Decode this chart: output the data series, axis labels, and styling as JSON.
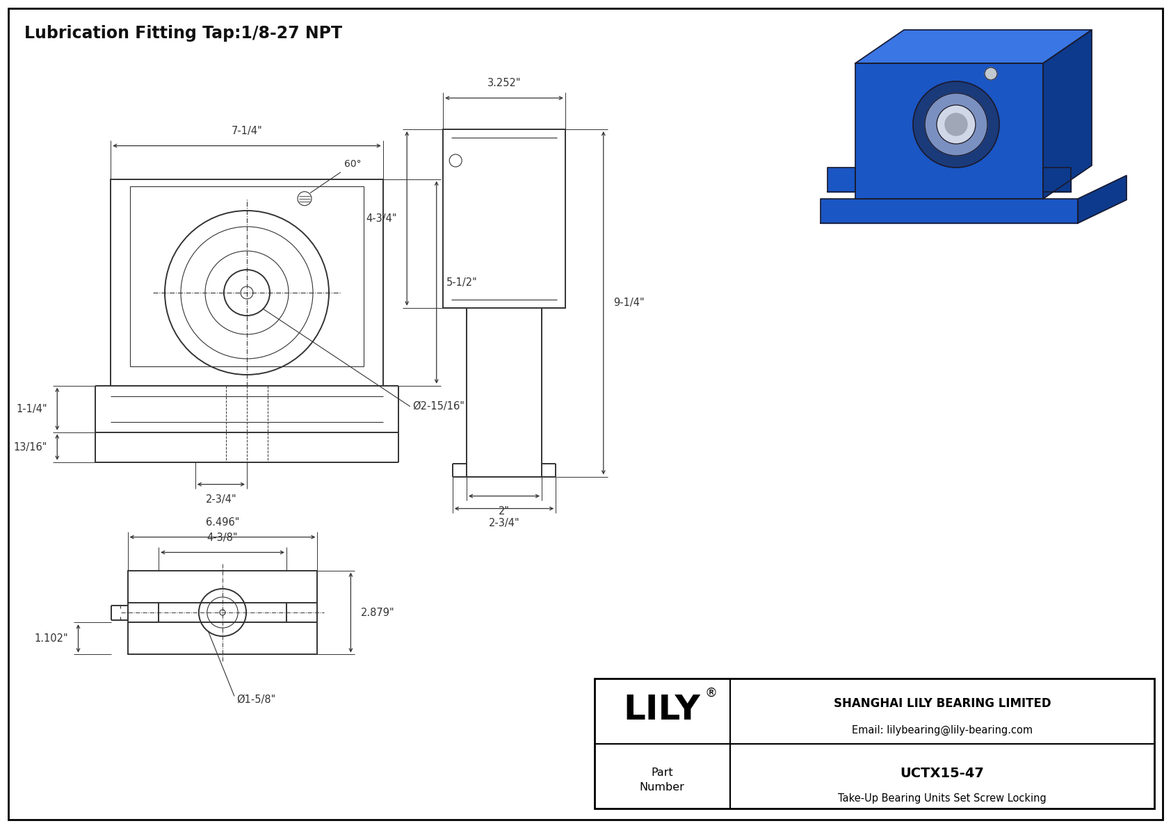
{
  "title": "Lubrication Fitting Tap:1/8-27 NPT",
  "background_color": "#ffffff",
  "lc": "#333333",
  "dimensions": {
    "front_width": "7-1/4\"",
    "front_height_upper": "1-1/4\"",
    "front_height_lower": "13/16\"",
    "front_height_total": "5-1/2\"",
    "front_bolt_spacing": "2-3/4\"",
    "front_bore": "Ø2-15/16\"",
    "front_angle": "60°",
    "side_width_top": "3.252\"",
    "side_height": "4-3/4\"",
    "side_total_height": "9-1/4\"",
    "side_base_width_inner": "2\"",
    "side_base_width_outer": "2-3/4\"",
    "bottom_total_width": "6.496\"",
    "bottom_inner_width": "4-3/8\"",
    "bottom_height": "2.879\"",
    "bottom_bore": "Ø1-5/8\"",
    "bottom_foot_height": "1.102\""
  },
  "title_box": {
    "company": "SHANGHAI LILY BEARING LIMITED",
    "email": "Email: lilybearing@lily-bearing.com",
    "part_label": "Part\nNumber",
    "part_number": "UCTX15-47",
    "description": "Take-Up Bearing Units Set Screw Locking",
    "brand": "LILY"
  },
  "iso_colors": {
    "front": "#1a56c4",
    "top": "#3a76e4",
    "right": "#0d3a8c",
    "bearing_outer": "#1a3a7a",
    "bearing_mid": "#7a90c0",
    "bearing_inner": "#d0d8e8",
    "shaft": "#a0a8b8",
    "screw_silver": "#c0c8d0"
  }
}
